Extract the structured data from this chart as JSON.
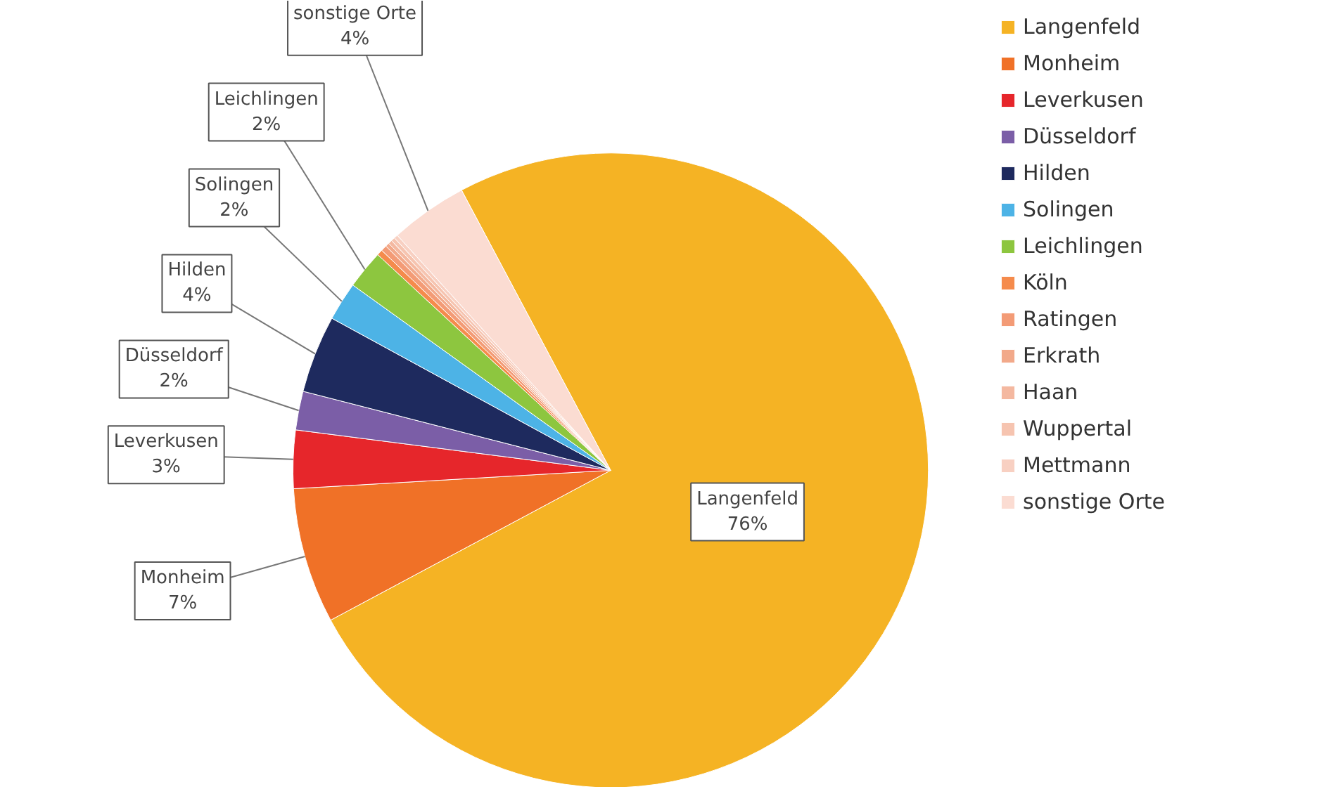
{
  "chart_data": {
    "type": "pie",
    "categories": [
      "Langenfeld",
      "Monheim",
      "Leverkusen",
      "Düsseldorf",
      "Hilden",
      "Solingen",
      "Leichlingen",
      "Köln",
      "Ratingen",
      "Erkrath",
      "Haan",
      "Wuppertal",
      "Mettmann",
      "sonstige Orte"
    ],
    "values": [
      76,
      7,
      3,
      2,
      4,
      2,
      2,
      0.3,
      0.3,
      0.2,
      0.2,
      0.2,
      0.2,
      4
    ],
    "value_labels": [
      "76%",
      "7%",
      "3%",
      "2%",
      "4%",
      "2%",
      "2%",
      null,
      null,
      null,
      null,
      null,
      null,
      "4%"
    ],
    "colors": [
      "#f5b324",
      "#f07127",
      "#e6262b",
      "#7b5ea7",
      "#1e2a5e",
      "#4db3e6",
      "#8dc63f",
      "#f58b4c",
      "#f39b76",
      "#f2a98a",
      "#f4b8a0",
      "#f6c4b0",
      "#f8d0c2",
      "#fbdcd2"
    ],
    "legend": "right"
  }
}
